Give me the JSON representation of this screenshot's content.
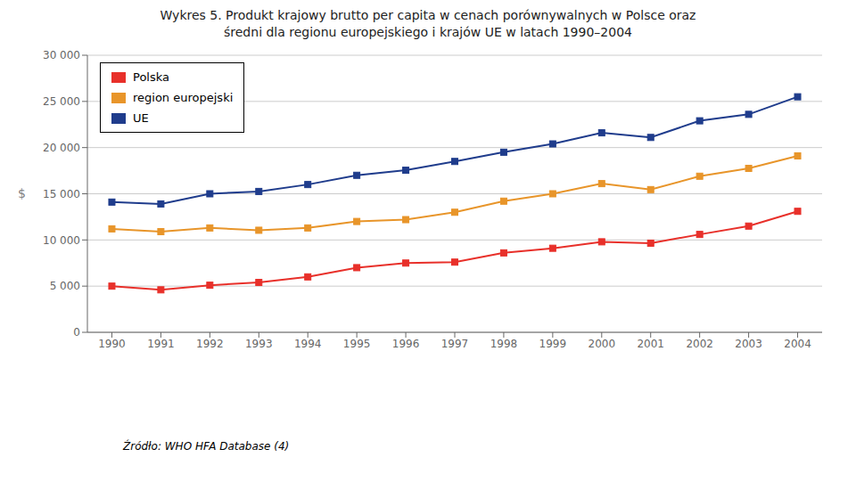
{
  "chart_data": {
    "type": "line",
    "title": "Wykres 5. Produkt krajowy brutto per capita w cenach porównywalnych w Polsce oraz\nśredni dla regionu europejskiego i krajów UE w latach 1990–2004",
    "y_label": "$",
    "annotation": "Źródło: WHO HFA Database (4)",
    "x": [
      1990,
      1991,
      1992,
      1993,
      1994,
      1995,
      1996,
      1997,
      1998,
      1999,
      2000,
      2001,
      2002,
      2003,
      2004
    ],
    "series": [
      {
        "name": "Polska",
        "color": "#e8302a",
        "marker": "square",
        "values": [
          5000,
          4600,
          5100,
          5400,
          6000,
          7000,
          7500,
          7600,
          8600,
          9100,
          9800,
          9650,
          10600,
          11500,
          13100
        ]
      },
      {
        "name": "region europejski",
        "color": "#e8952a",
        "marker": "square",
        "values": [
          11200,
          10900,
          11300,
          11050,
          11300,
          12000,
          12200,
          13000,
          14200,
          15000,
          16100,
          15450,
          16900,
          17750,
          19100
        ]
      },
      {
        "name": "UE",
        "color": "#1f3c8c",
        "marker": "square",
        "values": [
          14100,
          13900,
          15000,
          15250,
          16000,
          17000,
          17550,
          18500,
          19500,
          20400,
          21600,
          21100,
          22900,
          23600,
          25500
        ]
      }
    ],
    "xlim": [
      1989.5,
      2004.5
    ],
    "xticks": [
      1990,
      1991,
      1992,
      1993,
      1994,
      1995,
      1996,
      1997,
      1998,
      1999,
      2000,
      2001,
      2002,
      2003,
      2004
    ],
    "ylim": [
      0,
      30000
    ],
    "yticks": [
      0,
      {
        "value": 5000,
        "label": "5 000"
      },
      {
        "value": 10000,
        "label": "10 000"
      },
      {
        "value": 15000,
        "label": "15 000"
      },
      {
        "value": 20000,
        "label": "20 000"
      },
      {
        "value": 25000,
        "label": "25 000"
      },
      {
        "value": 30000,
        "label": "30 000"
      }
    ],
    "grid": "y",
    "legend": "upper left"
  }
}
